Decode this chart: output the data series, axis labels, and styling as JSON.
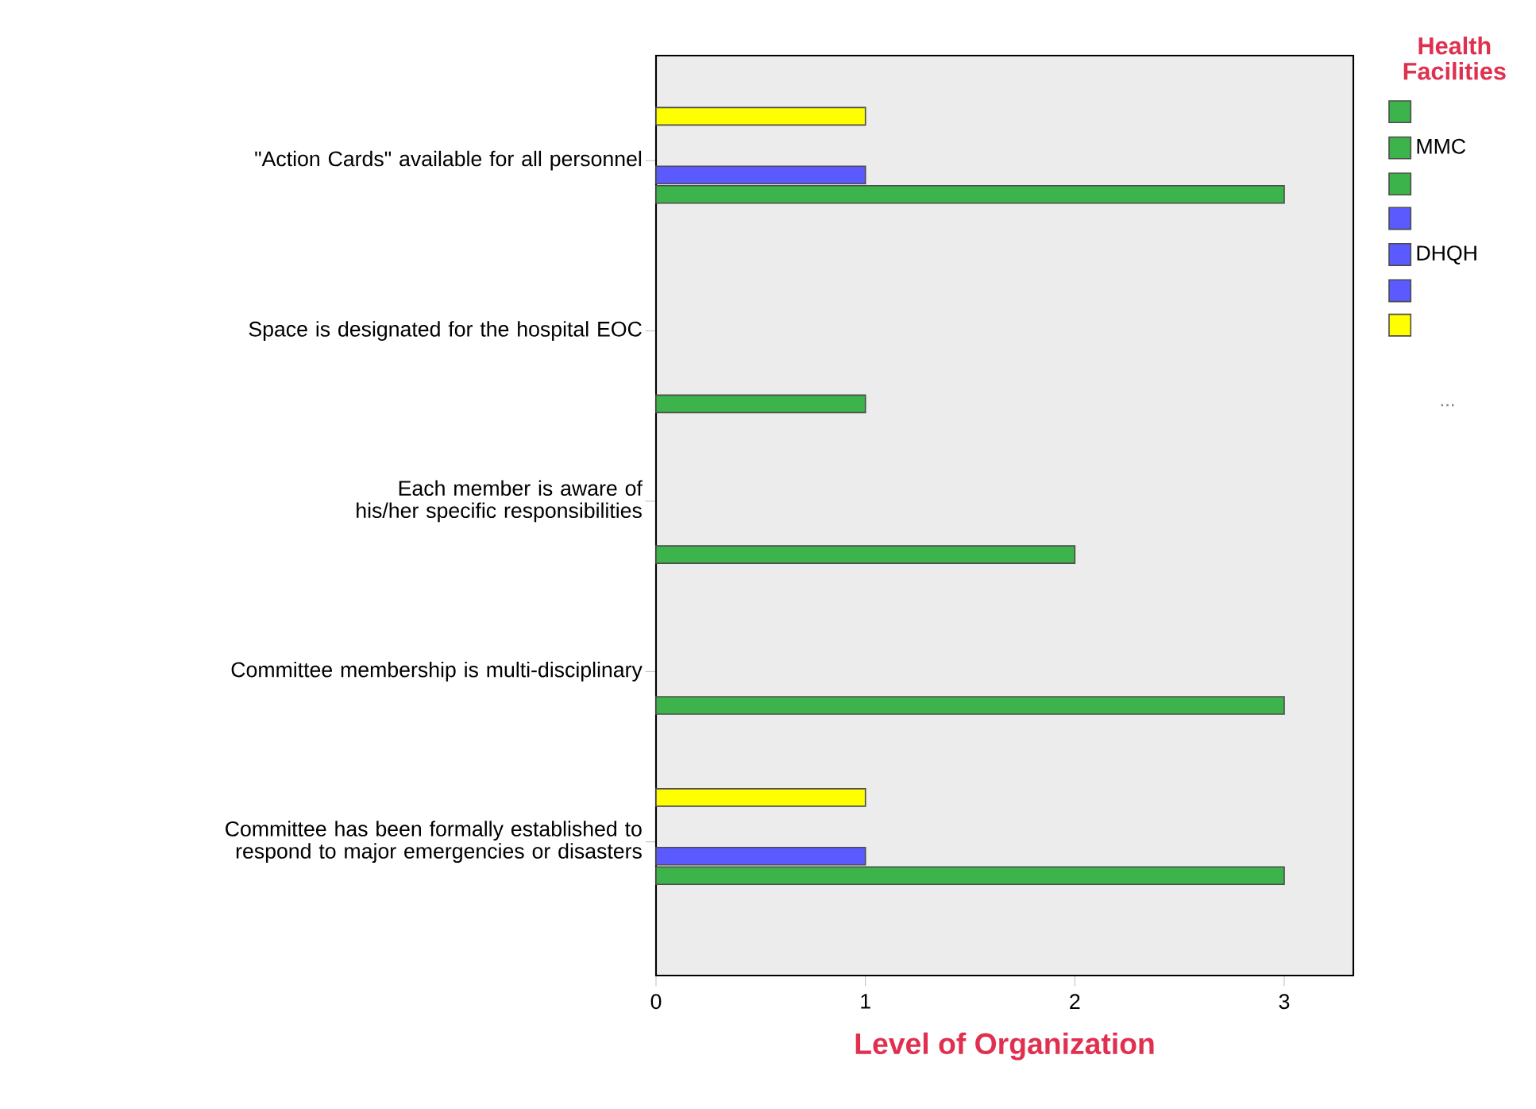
{
  "chart_data": {
    "type": "bar",
    "orientation": "horizontal",
    "xlabel": "Level of Organization",
    "legend_title": "Health Facilities",
    "legend": "right",
    "categories": [
      "\"Action Cards\" available for all personnel",
      "Space is designated for the hospital EOC",
      "Each member is aware of his/her specific responsibilities",
      "Committee membership is multi-disciplinary",
      "Committee has been formally established to respond to major emergencies or disasters"
    ],
    "series": [
      {
        "color": "#3cb44b",
        "values": [
          null,
          1,
          null,
          null,
          null
        ]
      },
      {
        "name": "MMC",
        "color": "#3cb44b",
        "values": [
          null,
          null,
          2,
          null,
          null
        ]
      },
      {
        "color": "#3cb44b",
        "values": [
          3,
          null,
          null,
          3,
          3
        ]
      },
      {
        "color": "#5a5aff",
        "values": [
          1,
          null,
          null,
          null,
          1
        ]
      },
      {
        "name": "DHQH",
        "color": "#5a5aff",
        "values": [
          null,
          null,
          null,
          null,
          null
        ]
      },
      {
        "color": "#5a5aff",
        "values": [
          null,
          null,
          null,
          null,
          null
        ]
      },
      {
        "color": "#ffff00",
        "values": [
          1,
          null,
          null,
          null,
          1
        ]
      }
    ],
    "xlim": [
      0,
      3.33
    ],
    "xticks": [
      0,
      1,
      2,
      3
    ],
    "annotations": [
      "..."
    ]
  }
}
